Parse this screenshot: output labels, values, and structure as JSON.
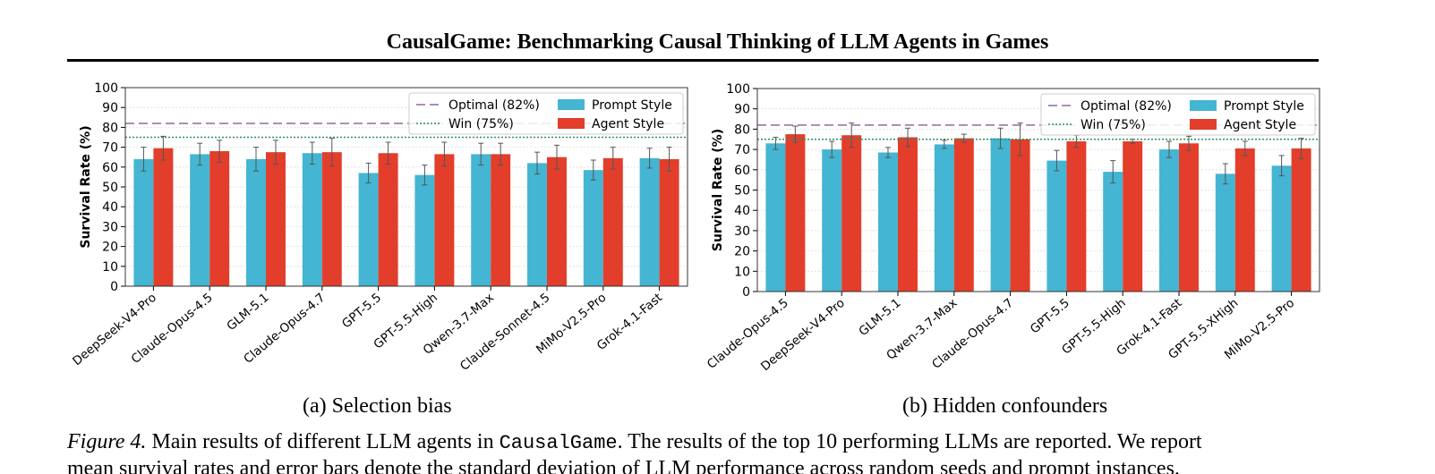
{
  "header": {
    "title": "CausalGame: Benchmarking Causal Thinking of LLM Agents in Games"
  },
  "colors": {
    "prompt": "#44b5d2",
    "agent": "#e23e2b",
    "optimal": "#8d6a9f",
    "win": "#2e8f64"
  },
  "chart_data": [
    {
      "type": "bar",
      "caption_label": "(a)",
      "caption_text": "Selection bias",
      "ylabel": "Survival Rate (%)",
      "ylim": [
        0,
        100
      ],
      "yticks": [
        0,
        10,
        20,
        30,
        40,
        50,
        60,
        70,
        80,
        90,
        100
      ],
      "grid": true,
      "legend_position": "top-right",
      "reference_lines": [
        {
          "name": "Optimal (82%)",
          "value": 82,
          "style": "dashed"
        },
        {
          "name": "Win (75%)",
          "value": 75,
          "style": "dotted"
        }
      ],
      "categories": [
        "DeepSeek-V4-Pro",
        "Claude-Opus-4.5",
        "GLM-5.1",
        "Claude-Opus-4.7",
        "GPT-5.5",
        "GPT-5.5-High",
        "Qwen-3.7-Max",
        "Claude-Sonnet-4.5",
        "MiMo-V2.5-Pro",
        "Grok-4.1-Fast"
      ],
      "series": [
        {
          "name": "Prompt Style",
          "values": [
            64,
            66.5,
            64,
            67,
            57,
            56,
            66.5,
            62,
            58.5,
            64.5
          ],
          "errors": [
            6,
            5.5,
            6,
            5.5,
            5,
            5,
            5.5,
            5.5,
            5,
            5
          ]
        },
        {
          "name": "Agent Style",
          "values": [
            69.5,
            68,
            67.5,
            67.5,
            67,
            66.5,
            66.5,
            65,
            64.5,
            64
          ],
          "errors": [
            6,
            5.5,
            6,
            7,
            5.5,
            6,
            5.5,
            6,
            5.5,
            6
          ]
        }
      ]
    },
    {
      "type": "bar",
      "caption_label": "(b)",
      "caption_text": "Hidden confounders",
      "ylabel": "Survival Rate (%)",
      "ylim": [
        0,
        100
      ],
      "yticks": [
        0,
        10,
        20,
        30,
        40,
        50,
        60,
        70,
        80,
        90,
        100
      ],
      "grid": true,
      "legend_position": "top-right",
      "reference_lines": [
        {
          "name": "Optimal (82%)",
          "value": 82,
          "style": "dashed"
        },
        {
          "name": "Win (75%)",
          "value": 75,
          "style": "dotted"
        }
      ],
      "categories": [
        "Claude-Opus-4.5",
        "DeepSeek-V4-Pro",
        "GLM-5.1",
        "Qwen-3.7-Max",
        "Claude-Opus-4.7",
        "GPT-5.5",
        "GPT-5.5-High",
        "Grok-4.1-Fast",
        "GPT-5.5-XHigh",
        "MiMo-V2.5-Pro"
      ],
      "series": [
        {
          "name": "Prompt Style",
          "values": [
            73,
            70,
            68.5,
            72.5,
            75.5,
            64.5,
            59,
            70,
            58,
            62
          ],
          "errors": [
            3,
            4,
            2.5,
            2,
            5,
            5,
            5.5,
            4,
            5,
            5
          ]
        },
        {
          "name": "Agent Style",
          "values": [
            77.5,
            77,
            76,
            75.5,
            75,
            74,
            74,
            73,
            70.5,
            70.5
          ],
          "errors": [
            4,
            6,
            4.5,
            2,
            8,
            3,
            1,
            3.5,
            3.5,
            5
          ]
        }
      ]
    }
  ],
  "figure_caption": {
    "label": "Figure 4.",
    "before_code": "Main results of different LLM agents in",
    "code": "CausalGame",
    "after_code": ". The results of the top 10 performing LLMs are reported. We report",
    "second_line": "mean survival rates and error bars denote the standard deviation of LLM performance across random seeds and prompt instances."
  }
}
